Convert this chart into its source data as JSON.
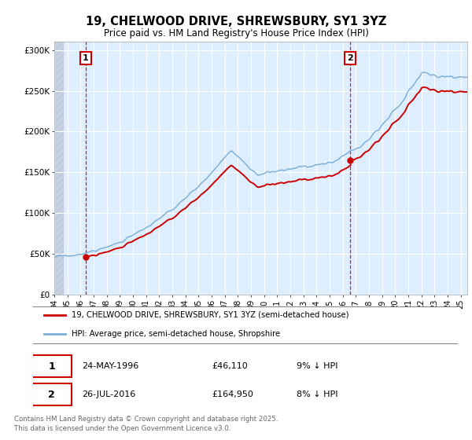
{
  "title_line1": "19, CHELWOOD DRIVE, SHREWSBURY, SY1 3YZ",
  "title_line2": "Price paid vs. HM Land Registry's House Price Index (HPI)",
  "legend_label1": "19, CHELWOOD DRIVE, SHREWSBURY, SY1 3YZ (semi-detached house)",
  "legend_label2": "HPI: Average price, semi-detached house, Shropshire",
  "footer": "Contains HM Land Registry data © Crown copyright and database right 2025.\nThis data is licensed under the Open Government Licence v3.0.",
  "ann1": {
    "num": "1",
    "date": "24-MAY-1996",
    "price": "£46,110",
    "hpi": "9% ↓ HPI",
    "x_year": 1996.39,
    "price_val": 46110
  },
  "ann2": {
    "num": "2",
    "date": "26-JUL-2016",
    "price": "£164,950",
    "hpi": "8% ↓ HPI",
    "x_year": 2016.57,
    "price_val": 164950
  },
  "color_red": "#cc0000",
  "color_blue": "#7aaed6",
  "color_bg": "#ddeeff",
  "ylim": [
    0,
    310000
  ],
  "xlim_start": 1994.0,
  "xlim_end": 2025.5,
  "yticks": [
    0,
    50000,
    100000,
    150000,
    200000,
    250000,
    300000
  ],
  "ytick_labels": [
    "£0",
    "£50K",
    "£100K",
    "£150K",
    "£200K",
    "£250K",
    "£300K"
  ],
  "xticks": [
    1994,
    1995,
    1996,
    1997,
    1998,
    1999,
    2000,
    2001,
    2002,
    2003,
    2004,
    2005,
    2006,
    2007,
    2008,
    2009,
    2010,
    2011,
    2012,
    2013,
    2014,
    2015,
    2016,
    2017,
    2018,
    2019,
    2020,
    2021,
    2022,
    2023,
    2024,
    2025
  ]
}
